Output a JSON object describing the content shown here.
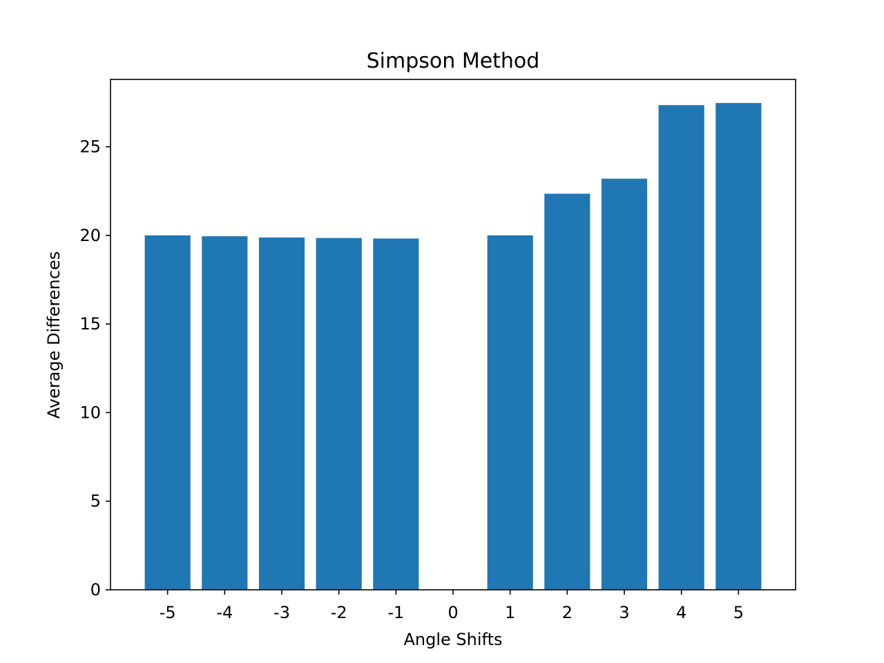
{
  "chart_data": {
    "type": "bar",
    "title": "Simpson Method",
    "xlabel": "Angle Shifts",
    "ylabel": "Average Differences",
    "categories": [
      "-5",
      "-4",
      "-3",
      "-2",
      "-1",
      "0",
      "1",
      "2",
      "3",
      "4",
      "5"
    ],
    "x": [
      -5,
      -4,
      -3,
      -2,
      -1,
      0,
      1,
      2,
      3,
      4,
      5
    ],
    "values": [
      20.0,
      19.95,
      19.88,
      19.85,
      19.82,
      0,
      20.0,
      22.35,
      23.2,
      27.35,
      27.47
    ],
    "ylim": [
      0,
      28.8
    ],
    "yticks": [
      0,
      5,
      10,
      15,
      20,
      25
    ],
    "grid": false,
    "bar_color": "#1f77b4"
  }
}
